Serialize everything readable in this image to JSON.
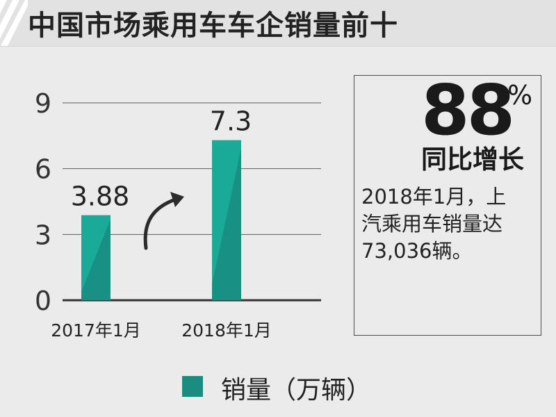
{
  "header": {
    "title": "中国市场乘用车车企销量前十"
  },
  "colors": {
    "bar": "#1aaa98",
    "bar_shade": "#1a8c80",
    "legend": "#1a8c80"
  },
  "chart_data": {
    "type": "bar",
    "categories": [
      "2017年1月",
      "2018年1月"
    ],
    "series": [
      {
        "name": "销量（万辆）",
        "values": [
          3.88,
          7.3
        ]
      }
    ],
    "data_labels": [
      "3.88",
      "7.3"
    ],
    "yticks": [
      "0",
      "3",
      "6",
      "9"
    ],
    "ylim": [
      0,
      9
    ],
    "grid": true,
    "legend_position": "bottom"
  },
  "callout": {
    "number": "88",
    "percent": "%",
    "label": "同比增长",
    "note_lines": [
      "2018年1月，上",
      "汽乘用车销量达",
      "73,036辆。"
    ]
  }
}
